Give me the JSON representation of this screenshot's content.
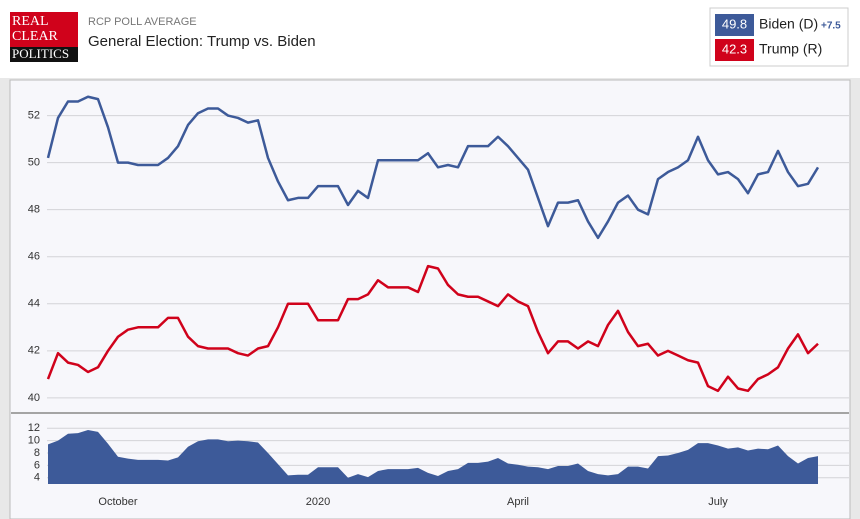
{
  "header": {
    "logo": [
      "REAL",
      "CLEAR",
      "POLITICS"
    ]
  },
  "chart_data": [
    {
      "type": "line",
      "subtitle": "RCP POLL AVERAGE",
      "title": "General Election: Trump vs. Biden",
      "series": [
        {
          "name": "Biden (D)",
          "color": "#3d5a99",
          "values": [
            50.2,
            51.9,
            52.6,
            52.6,
            52.8,
            52.7,
            51.5,
            50.0,
            50.0,
            49.9,
            49.9,
            49.9,
            50.2,
            50.7,
            51.6,
            52.1,
            52.3,
            52.3,
            52.0,
            51.9,
            51.7,
            51.8,
            50.2,
            49.2,
            48.4,
            48.5,
            48.5,
            49.0,
            49.0,
            49.0,
            48.2,
            48.8,
            48.5,
            50.1,
            50.1,
            50.1,
            50.1,
            50.1,
            50.4,
            49.8,
            49.9,
            49.8,
            50.7,
            50.7,
            50.7,
            51.1,
            50.7,
            50.2,
            49.7,
            48.5,
            47.3,
            48.3,
            48.3,
            48.4,
            47.5,
            46.8,
            47.5,
            48.3,
            48.6,
            48.0,
            47.8,
            49.3,
            49.6,
            49.8,
            50.1,
            51.1,
            50.1,
            49.5,
            49.6,
            49.3,
            48.7,
            49.5,
            49.6,
            50.5,
            49.6,
            49.0,
            49.1,
            49.8
          ]
        },
        {
          "name": "Trump (R)",
          "color": "#d0021b",
          "values": [
            40.8,
            41.9,
            41.5,
            41.4,
            41.1,
            41.3,
            42.0,
            42.6,
            42.9,
            43.0,
            43.0,
            43.0,
            43.4,
            43.4,
            42.6,
            42.2,
            42.1,
            42.1,
            42.1,
            41.9,
            41.8,
            42.1,
            42.2,
            43.0,
            44.0,
            44.0,
            44.0,
            43.3,
            43.3,
            43.3,
            44.2,
            44.2,
            44.4,
            45.0,
            44.7,
            44.7,
            44.7,
            44.5,
            45.6,
            45.5,
            44.8,
            44.4,
            44.3,
            44.3,
            44.1,
            43.9,
            44.4,
            44.1,
            43.9,
            42.8,
            41.9,
            42.4,
            42.4,
            42.1,
            42.4,
            42.2,
            43.1,
            43.7,
            42.8,
            42.2,
            42.3,
            41.8,
            42.0,
            41.8,
            41.6,
            41.5,
            40.5,
            40.3,
            40.9,
            40.4,
            40.3,
            40.8,
            41.0,
            41.3,
            42.1,
            42.7,
            41.9,
            42.3
          ]
        }
      ],
      "lead": {
        "value": 7.5,
        "label": "+7.5"
      },
      "ylim": [
        39.4,
        53.3
      ],
      "yticks": [
        40,
        42,
        44,
        46,
        48,
        50,
        52
      ],
      "grid": true
    },
    {
      "type": "area",
      "color": "#3d5a99",
      "categories": [
        null,
        null,
        null,
        null,
        null,
        null,
        null,
        "October",
        null,
        null,
        null,
        null,
        null,
        null,
        null,
        null,
        null,
        null,
        null,
        null,
        null,
        null,
        null,
        null,
        null,
        null,
        null,
        "2020",
        null,
        null,
        null,
        null,
        null,
        null,
        null,
        null,
        null,
        null,
        null,
        null,
        null,
        null,
        null,
        null,
        null,
        null,
        null,
        "April",
        null,
        null,
        null,
        null,
        null,
        null,
        null,
        null,
        null,
        null,
        null,
        null,
        null,
        null,
        null,
        null,
        null,
        null,
        null,
        "July",
        null,
        null,
        null,
        null,
        null,
        null,
        null,
        null,
        null,
        null
      ],
      "values": [
        9.4,
        10.0,
        11.1,
        11.2,
        11.7,
        11.4,
        9.5,
        7.4,
        7.1,
        6.9,
        6.9,
        6.9,
        6.8,
        7.3,
        9.0,
        9.9,
        10.2,
        10.2,
        9.9,
        10.0,
        9.9,
        9.7,
        8.0,
        6.2,
        4.4,
        4.5,
        4.5,
        5.7,
        5.7,
        5.7,
        4.0,
        4.6,
        4.1,
        5.1,
        5.4,
        5.4,
        5.4,
        5.6,
        4.8,
        4.3,
        5.1,
        5.4,
        6.4,
        6.4,
        6.6,
        7.2,
        6.3,
        6.1,
        5.8,
        5.7,
        5.4,
        5.9,
        5.9,
        6.3,
        5.1,
        4.6,
        4.4,
        4.6,
        5.8,
        5.8,
        5.5,
        7.5,
        7.6,
        8.0,
        8.5,
        9.6,
        9.6,
        9.2,
        8.7,
        8.9,
        8.4,
        8.7,
        8.6,
        9.2,
        7.5,
        6.3,
        7.2,
        7.5
      ],
      "ylim": [
        3,
        13
      ],
      "yticks": [
        4,
        6,
        8,
        10,
        12
      ],
      "grid": true
    }
  ]
}
